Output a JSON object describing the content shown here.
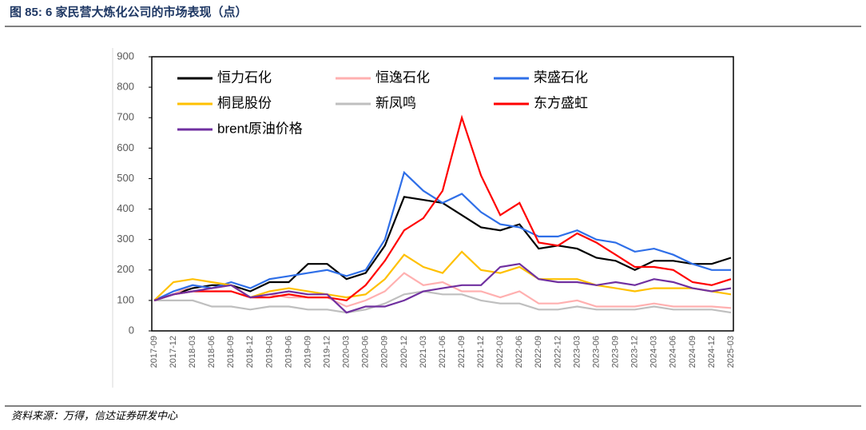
{
  "chart_data": {
    "type": "line",
    "title": "图 85:  6 家民营大炼化公司的市场表现（点）",
    "source": "资料来源：万得，信达证券研发中心",
    "categories": [
      "2017-09",
      "2017-12",
      "2018-03",
      "2018-06",
      "2018-09",
      "2018-12",
      "2019-03",
      "2019-06",
      "2019-09",
      "2019-12",
      "2020-03",
      "2020-06",
      "2020-09",
      "2020-12",
      "2021-03",
      "2021-06",
      "2021-09",
      "2021-12",
      "2022-03",
      "2022-06",
      "2022-09",
      "2022-12",
      "2023-03",
      "2023-06",
      "2023-09",
      "2023-12",
      "2024-03",
      "2024-06",
      "2024-09",
      "2024-12",
      "2025-03"
    ],
    "series": [
      {
        "name": "恒力石化",
        "color": "#000000",
        "values": [
          100,
          120,
          140,
          150,
          150,
          130,
          160,
          160,
          220,
          220,
          170,
          190,
          280,
          440,
          430,
          420,
          380,
          340,
          330,
          350,
          270,
          280,
          270,
          240,
          230,
          200,
          230,
          230,
          220,
          220,
          240
        ]
      },
      {
        "name": "恒逸石化",
        "color": "#ffb0b0",
        "values": [
          100,
          120,
          150,
          140,
          150,
          110,
          120,
          110,
          110,
          110,
          80,
          100,
          130,
          190,
          150,
          160,
          130,
          130,
          110,
          130,
          90,
          90,
          100,
          80,
          80,
          80,
          90,
          80,
          80,
          80,
          75
        ]
      },
      {
        "name": "荣盛石化",
        "color": "#2f6fe8",
        "values": [
          100,
          130,
          150,
          140,
          160,
          140,
          170,
          180,
          190,
          200,
          180,
          200,
          300,
          520,
          460,
          420,
          450,
          390,
          350,
          340,
          310,
          310,
          330,
          300,
          290,
          260,
          270,
          250,
          220,
          200,
          200
        ]
      },
      {
        "name": "桐昆股份",
        "color": "#ffc000",
        "values": [
          100,
          160,
          170,
          160,
          150,
          110,
          130,
          140,
          130,
          120,
          110,
          120,
          170,
          250,
          210,
          190,
          260,
          200,
          190,
          210,
          170,
          170,
          170,
          150,
          140,
          130,
          140,
          140,
          140,
          130,
          120
        ]
      },
      {
        "name": "新凤鸣",
        "color": "#bfbfbf",
        "values": [
          100,
          100,
          100,
          80,
          80,
          70,
          80,
          80,
          70,
          70,
          60,
          70,
          90,
          120,
          130,
          120,
          120,
          100,
          90,
          90,
          70,
          70,
          80,
          70,
          70,
          70,
          80,
          70,
          70,
          70,
          60
        ]
      },
      {
        "name": "东方盛虹",
        "color": "#ff0000",
        "values": [
          100,
          120,
          130,
          130,
          130,
          110,
          110,
          120,
          110,
          110,
          100,
          150,
          230,
          330,
          370,
          460,
          700,
          510,
          380,
          420,
          290,
          280,
          320,
          290,
          250,
          210,
          210,
          200,
          160,
          150,
          170
        ]
      },
      {
        "name": "brent原油价格",
        "color": "#7030a0",
        "values": [
          100,
          120,
          130,
          140,
          150,
          110,
          120,
          130,
          120,
          120,
          60,
          80,
          80,
          100,
          130,
          140,
          150,
          150,
          210,
          220,
          170,
          160,
          160,
          150,
          160,
          150,
          170,
          160,
          140,
          130,
          140
        ]
      }
    ],
    "ylim": [
      0,
      900
    ],
    "yticks": [
      0,
      100,
      200,
      300,
      400,
      500,
      600,
      700,
      800,
      900
    ],
    "grid": false,
    "legend": "top-left"
  }
}
